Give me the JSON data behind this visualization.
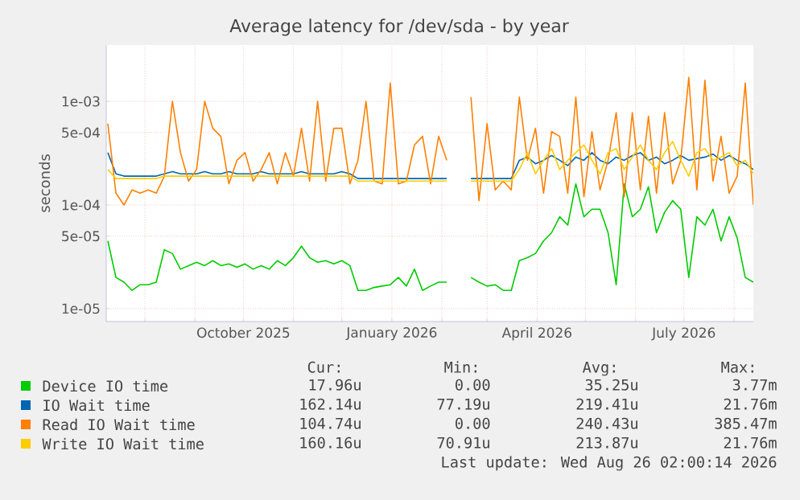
{
  "chart_data": {
    "type": "line",
    "title": "Average latency for /dev/sda - by year",
    "ylabel": "seconds",
    "log": true,
    "grid": true,
    "legend": "bottom",
    "xlim": [
      "2025-07-08",
      "2026-08-13"
    ],
    "ylim": [
      7.5e-06,
      0.0035
    ],
    "xticks": [
      {
        "value": "2025-08-01",
        "label": null
      },
      {
        "value": "2025-09-01",
        "label": null
      },
      {
        "value": "2025-10-01",
        "label": "October 2025"
      },
      {
        "value": "2025-11-01",
        "label": null
      },
      {
        "value": "2025-12-01",
        "label": null
      },
      {
        "value": "2026-01-01",
        "label": "January 2026"
      },
      {
        "value": "2026-02-01",
        "label": null
      },
      {
        "value": "2026-03-01",
        "label": null
      },
      {
        "value": "2026-04-01",
        "label": "April 2026"
      },
      {
        "value": "2026-05-01",
        "label": null
      },
      {
        "value": "2026-06-01",
        "label": null
      },
      {
        "value": "2026-07-01",
        "label": "July 2026"
      },
      {
        "value": "2026-08-01",
        "label": null
      }
    ],
    "yticks": [
      {
        "value": 1e-05,
        "label": "1e-05"
      },
      {
        "value": 5e-05,
        "label": "5e-05"
      },
      {
        "value": 0.0001,
        "label": "1e-04"
      },
      {
        "value": 0.0005,
        "label": "5e-04"
      },
      {
        "value": 0.001,
        "label": "1e-03"
      }
    ],
    "x": [
      "2025-07-09",
      "2025-07-14",
      "2025-07-19",
      "2025-07-24",
      "2025-07-29",
      "2025-08-03",
      "2025-08-08",
      "2025-08-13",
      "2025-08-18",
      "2025-08-23",
      "2025-08-28",
      "2025-09-02",
      "2025-09-07",
      "2025-09-12",
      "2025-09-17",
      "2025-09-22",
      "2025-09-27",
      "2025-10-02",
      "2025-10-07",
      "2025-10-12",
      "2025-10-17",
      "2025-10-22",
      "2025-10-27",
      "2025-11-01",
      "2025-11-06",
      "2025-11-11",
      "2025-11-16",
      "2025-11-21",
      "2025-11-26",
      "2025-12-01",
      "2025-12-06",
      "2025-12-11",
      "2025-12-16",
      "2025-12-21",
      "2025-12-26",
      "2025-12-31",
      "2026-01-05",
      "2026-01-10",
      "2026-01-15",
      "2026-01-20",
      "2026-01-25",
      "2026-01-30",
      "2026-02-04",
      "2026-02-09",
      "2026-02-14",
      "2026-02-19",
      "2026-02-24",
      "2026-03-01",
      "2026-03-06",
      "2026-03-11",
      "2026-03-16",
      "2026-03-21",
      "2026-03-26",
      "2026-03-31",
      "2026-04-05",
      "2026-04-10",
      "2026-04-15",
      "2026-04-20",
      "2026-04-25",
      "2026-04-30",
      "2026-05-05",
      "2026-05-10",
      "2026-05-15",
      "2026-05-20",
      "2026-05-25",
      "2026-05-30",
      "2026-06-04",
      "2026-06-09",
      "2026-06-14",
      "2026-06-19",
      "2026-06-24",
      "2026-06-29",
      "2026-07-04",
      "2026-07-09",
      "2026-07-14",
      "2026-07-19",
      "2026-07-24",
      "2026-07-29",
      "2026-08-03",
      "2026-08-08",
      "2026-08-13"
    ],
    "series": [
      {
        "name": "Device IO time",
        "color": "#00cc00",
        "values": [
          4.5e-05,
          2e-05,
          1.8e-05,
          1.5e-05,
          1.7e-05,
          1.7e-05,
          1.8e-05,
          3.7e-05,
          3.4e-05,
          2.4e-05,
          2.6e-05,
          2.8e-05,
          2.6e-05,
          2.9e-05,
          2.6e-05,
          2.7e-05,
          2.5e-05,
          2.7e-05,
          2.4e-05,
          2.6e-05,
          2.4e-05,
          2.9e-05,
          2.6e-05,
          3.1e-05,
          4e-05,
          3.1e-05,
          2.8e-05,
          2.9e-05,
          2.7e-05,
          2.9e-05,
          2.6e-05,
          1.5e-05,
          1.5e-05,
          1.6e-05,
          1.65e-05,
          1.7e-05,
          2e-05,
          1.65e-05,
          2.4e-05,
          1.5e-05,
          1.65e-05,
          1.8e-05,
          1.8e-05,
          null,
          null,
          2e-05,
          1.8e-05,
          1.65e-05,
          1.7e-05,
          1.5e-05,
          1.5e-05,
          2.9e-05,
          3.1e-05,
          3.4e-05,
          4.5e-05,
          5.4e-05,
          7.7e-05,
          6.4e-05,
          0.00016,
          7.7e-05,
          9.1e-05,
          9.1e-05,
          5.4e-05,
          1.7e-05,
          0.00016,
          7.7e-05,
          9.1e-05,
          0.00015,
          5.4e-05,
          8.5e-05,
          0.00011,
          9.1e-05,
          2e-05,
          7.7e-05,
          6.4e-05,
          9.1e-05,
          4.5e-05,
          7.7e-05,
          4.8e-05,
          2e-05,
          1.8e-05
        ]
      },
      {
        "name": "IO Wait time",
        "color": "#0066b3",
        "values": [
          0.00032,
          0.0002,
          0.00019,
          0.00019,
          0.00019,
          0.00019,
          0.00019,
          0.0002,
          0.00021,
          0.0002,
          0.0002,
          0.0002,
          0.00021,
          0.0002,
          0.0002,
          0.00021,
          0.0002,
          0.0002,
          0.0002,
          0.00021,
          0.0002,
          0.0002,
          0.0002,
          0.0002,
          0.00021,
          0.0002,
          0.0002,
          0.0002,
          0.0002,
          0.00021,
          0.0002,
          0.00018,
          0.00018,
          0.00018,
          0.00018,
          0.00018,
          0.00018,
          0.00018,
          0.00018,
          0.00018,
          0.00018,
          0.00018,
          0.00018,
          null,
          null,
          0.00018,
          0.00018,
          0.00018,
          0.00018,
          0.00018,
          0.00018,
          0.00027,
          0.00029,
          0.00025,
          0.00027,
          0.0003,
          0.00027,
          0.00024,
          0.00029,
          0.00027,
          0.00032,
          0.00027,
          0.00025,
          0.00029,
          0.00027,
          0.0003,
          0.00032,
          0.00027,
          0.00029,
          0.00025,
          0.00027,
          0.0003,
          0.00027,
          0.00028,
          0.00029,
          0.00031,
          0.00027,
          0.0003,
          0.00027,
          0.00025,
          0.00022
        ]
      },
      {
        "name": "Read IO Wait time",
        "color": "#ff8000",
        "values": [
          0.00061,
          0.00013,
          0.0001,
          0.00014,
          0.00013,
          0.00014,
          0.00013,
          0.00019,
          0.001,
          0.00032,
          0.00017,
          0.00022,
          0.001,
          0.00055,
          0.00046,
          0.00016,
          0.00027,
          0.00032,
          0.00017,
          0.00022,
          0.00032,
          0.00016,
          0.00032,
          0.00019,
          0.00055,
          0.00017,
          0.001,
          0.00017,
          0.00055,
          0.00055,
          0.00016,
          0.00027,
          0.001,
          0.00017,
          0.00016,
          0.0015,
          0.00016,
          0.00017,
          0.00038,
          0.00046,
          0.00016,
          0.00046,
          0.00027,
          null,
          null,
          0.0011,
          0.00011,
          0.00061,
          0.00014,
          0.00017,
          0.00014,
          0.0011,
          0.00027,
          0.00055,
          0.00013,
          0.00051,
          0.00046,
          0.00013,
          0.0011,
          0.00012,
          0.00051,
          0.00014,
          0.00027,
          0.00078,
          0.00012,
          0.00078,
          0.00014,
          0.00072,
          0.00013,
          0.00078,
          0.00016,
          0.00027,
          0.0017,
          0.00014,
          0.0016,
          0.00017,
          0.00046,
          0.00013,
          0.00019,
          0.0015,
          0.0001
        ]
      },
      {
        "name": "Write IO Wait time",
        "color": "#ffcc00",
        "values": [
          0.00022,
          0.00018,
          0.00018,
          0.00018,
          0.00018,
          0.00018,
          0.00018,
          0.00019,
          0.00019,
          0.00019,
          0.00019,
          0.00019,
          0.00019,
          0.00019,
          0.00019,
          0.00019,
          0.00019,
          0.00019,
          0.00019,
          0.00019,
          0.00019,
          0.00019,
          0.00019,
          0.00019,
          0.00019,
          0.00019,
          0.00019,
          0.00019,
          0.00019,
          0.00019,
          0.00019,
          0.00017,
          0.00017,
          0.00017,
          0.00017,
          0.00017,
          0.00017,
          0.00017,
          0.00017,
          0.00017,
          0.00017,
          0.00017,
          0.00017,
          null,
          null,
          0.00017,
          0.00017,
          0.00017,
          0.00017,
          0.00017,
          0.00017,
          0.00022,
          0.00032,
          0.0002,
          0.00027,
          0.00035,
          0.00022,
          0.00027,
          0.00032,
          0.00038,
          0.00027,
          0.0002,
          0.00032,
          0.00035,
          0.00022,
          0.00029,
          0.00038,
          0.00027,
          0.00022,
          0.00032,
          0.00041,
          0.00027,
          0.00019,
          0.00032,
          0.00035,
          0.00027,
          0.00029,
          0.00032,
          0.00024,
          0.00027,
          0.0002
        ]
      }
    ],
    "annotations": [
      "Cur:",
      "Min:",
      "Avg:",
      "Max:",
      "17.96u",
      "0.00",
      "35.25u",
      "3.77m",
      "162.14u",
      "77.19u",
      "219.41u",
      "21.76m",
      "104.74u",
      "0.00",
      "240.43u",
      "385.47m",
      "160.16u",
      "70.91u",
      "213.87u",
      "21.76m",
      "Last update: Wed Aug 26 02:00:14 2026"
    ]
  }
}
